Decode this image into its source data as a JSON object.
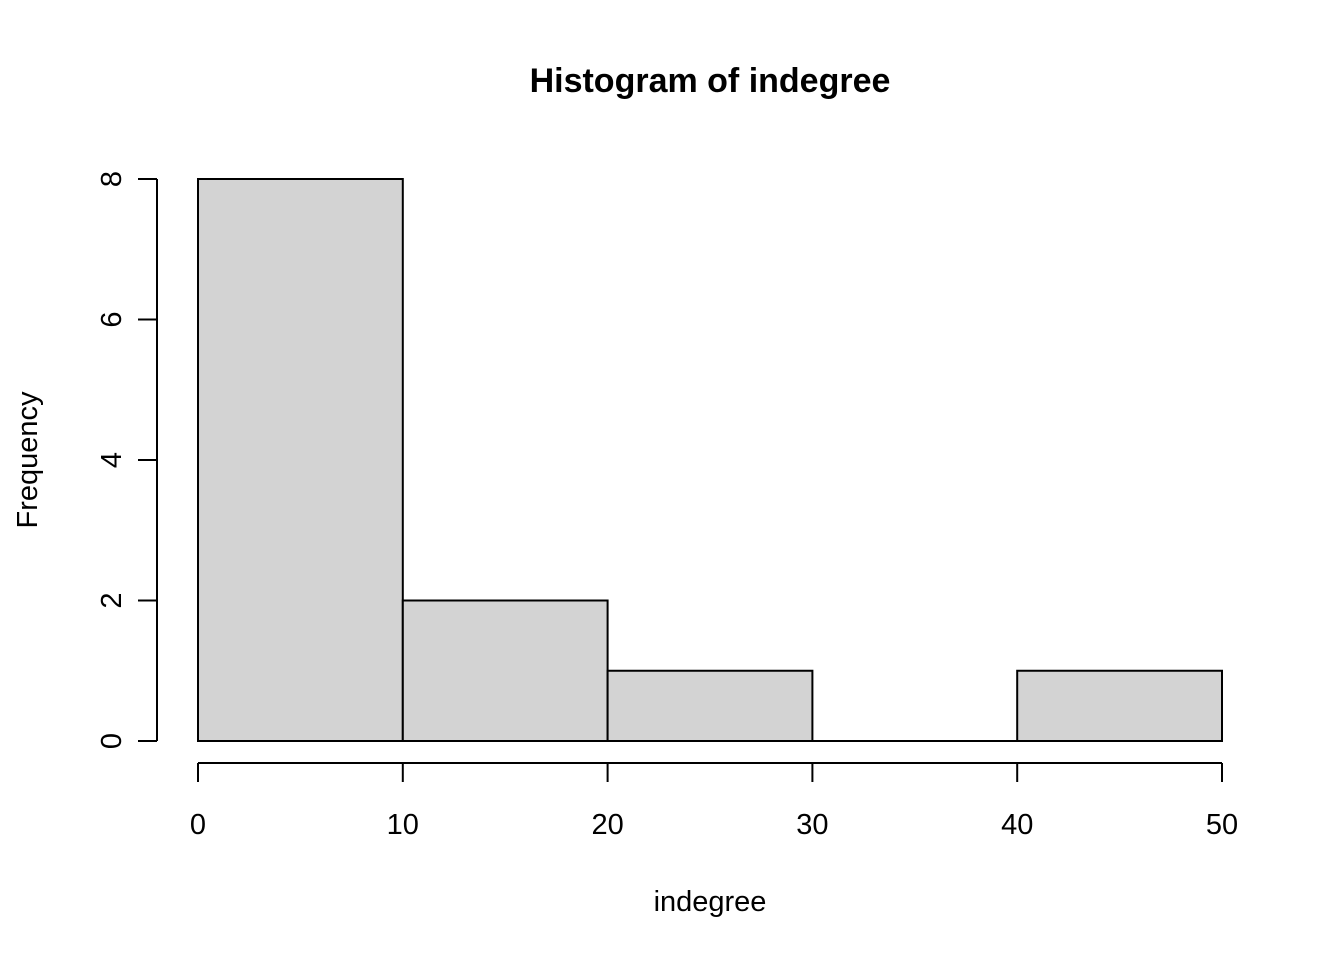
{
  "chart_data": {
    "type": "bar",
    "subtype": "histogram",
    "title": "Histogram of indegree",
    "xlabel": "indegree",
    "ylabel": "Frequency",
    "bins": [
      {
        "from": 0,
        "to": 10,
        "count": 8
      },
      {
        "from": 10,
        "to": 20,
        "count": 2
      },
      {
        "from": 20,
        "to": 30,
        "count": 1
      },
      {
        "from": 30,
        "to": 40,
        "count": 0
      },
      {
        "from": 40,
        "to": 50,
        "count": 1
      }
    ],
    "xlim": [
      0,
      50
    ],
    "ylim": [
      0,
      8
    ],
    "x_ticks": [
      "0",
      "10",
      "20",
      "30",
      "40",
      "50"
    ],
    "y_ticks": [
      "0",
      "2",
      "4",
      "6",
      "8"
    ],
    "grid": false,
    "bar_fill": "#d3d3d3",
    "bar_stroke": "#000000"
  }
}
